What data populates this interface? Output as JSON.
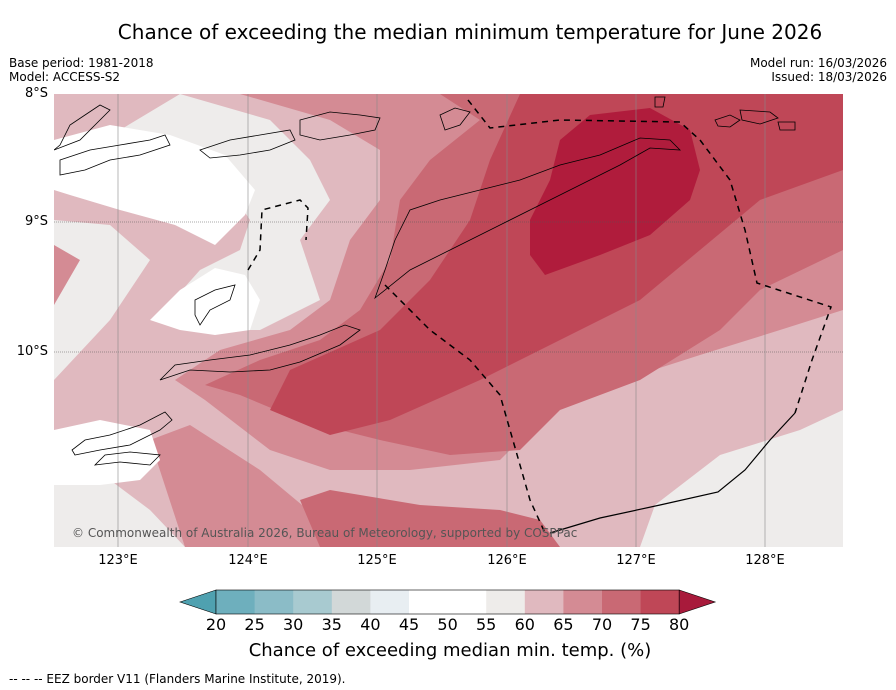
{
  "title": "Chance of exceeding the median minimum temperature for June 2026",
  "base_period": "Base period: 1981-2018",
  "model": "Model: ACCESS-S2",
  "model_run": "Model run: 16/03/2026",
  "issued": "Issued: 18/03/2026",
  "copyright": "© Commonwealth of Australia 2026, Bureau of Meteorology, supported by COSPPac",
  "footnote": "--  --  -- EEZ border V11 (Flanders Marine Institute, 2019).",
  "lat_labels": [
    "8°S",
    "9°S",
    "10°S"
  ],
  "lon_labels": [
    "123°E",
    "124°E",
    "125°E",
    "126°E",
    "127°E",
    "128°E"
  ],
  "colorbar": {
    "label": "Chance of exceeding median min. temp. (%)",
    "ticks": [
      "20",
      "25",
      "30",
      "35",
      "40",
      "45",
      "50",
      "55",
      "60",
      "65",
      "70",
      "75",
      "80"
    ],
    "colors": [
      "#4fa1b0",
      "#6eafbd",
      "#8bbcc7",
      "#a8cad0",
      "#d2d8d8",
      "#e8eef2",
      "#ffffff",
      "#ffffff",
      "#eeecea",
      "#e0b9bf",
      "#d48b94",
      "#c96974",
      "#bf4757",
      "#a81a3b"
    ]
  },
  "chart_data": {
    "type": "heatmap",
    "title": "Chance of exceeding the median minimum temperature for June 2026",
    "variable": "Chance of exceeding median min. temp. (%)",
    "lon_range": [
      122.5,
      128.6
    ],
    "lat_range": [
      -11.5,
      -8.0
    ],
    "levels": [
      20,
      25,
      30,
      35,
      40,
      45,
      50,
      55,
      60,
      65,
      70,
      75,
      80
    ],
    "summary": "Highest chances (75-80%) north of Timor near 126.5-127.5°E, 8.3-9.3°S; 70-75% over Timor Sea; 45-55% over western islands"
  }
}
